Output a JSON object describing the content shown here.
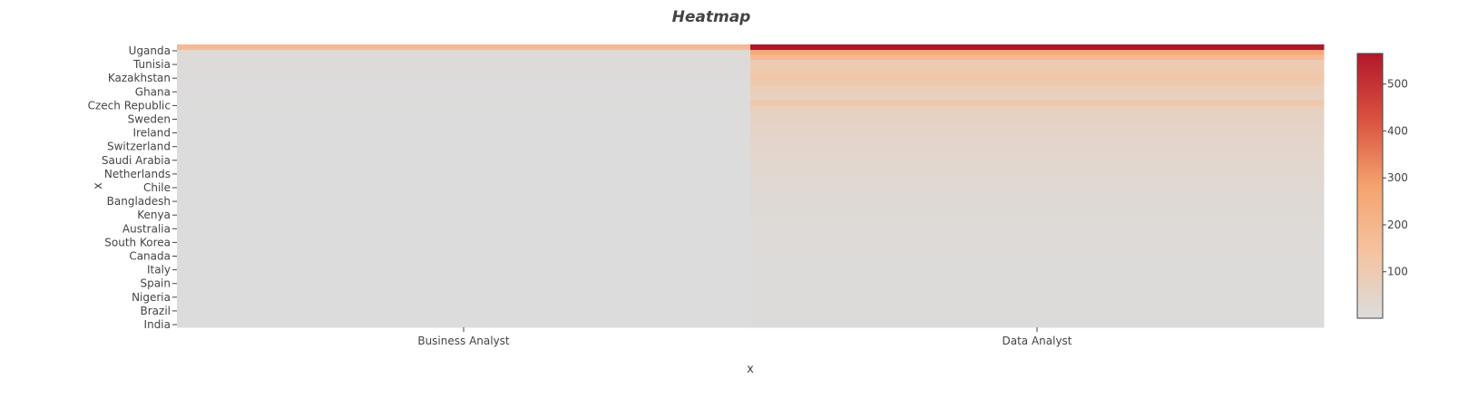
{
  "chart_data": {
    "type": "heatmap",
    "title": "Heatmap",
    "xlabel": "x",
    "ylabel": "x",
    "x_categories": [
      "Business Analyst",
      "Data Analyst"
    ],
    "y_tick_labels": [
      "Uganda",
      "Tunisia",
      "Kazakhstan",
      "Ghana",
      "Czech Republic",
      "Sweden",
      "Ireland",
      "Switzerland",
      "Saudi Arabia",
      "Netherlands",
      "Chile",
      "Bangladesh",
      "Kenya",
      "Australia",
      "South Korea",
      "Canada",
      "Italy",
      "Spain",
      "Nigeria",
      "Brazil",
      "India"
    ],
    "colorscale": [
      "#dcdcdc",
      "#f5c3a0",
      "#f4a36e",
      "#d9523f",
      "#b2182b"
    ],
    "zlim": [
      1,
      565
    ],
    "colorbar_ticks": [
      100,
      200,
      300,
      400,
      500
    ],
    "series": [
      {
        "values": [
          1,
          1,
          1,
          1,
          1,
          1,
          1,
          1,
          1,
          1,
          1,
          1,
          1,
          1,
          1,
          1,
          1,
          1,
          1,
          1,
          1,
          1,
          1,
          1,
          1,
          1,
          1,
          1,
          1,
          1,
          1,
          1,
          1,
          1,
          1,
          1,
          1,
          1,
          1,
          2,
          2,
          2,
          2,
          2,
          3,
          3,
          3,
          4,
          4,
          5,
          6,
          7,
          8,
          10,
          14,
          180
        ]
      },
      {
        "values": [
          5,
          5,
          5,
          6,
          6,
          6,
          7,
          7,
          7,
          8,
          8,
          8,
          9,
          9,
          10,
          10,
          11,
          12,
          12,
          13,
          14,
          15,
          16,
          17,
          18,
          19,
          20,
          22,
          23,
          25,
          27,
          29,
          31,
          33,
          35,
          38,
          41,
          44,
          47,
          50,
          55,
          60,
          64,
          68,
          120,
          70,
          75,
          80,
          110,
          125,
          110,
          105,
          95,
          180,
          250,
          565
        ]
      }
    ]
  }
}
